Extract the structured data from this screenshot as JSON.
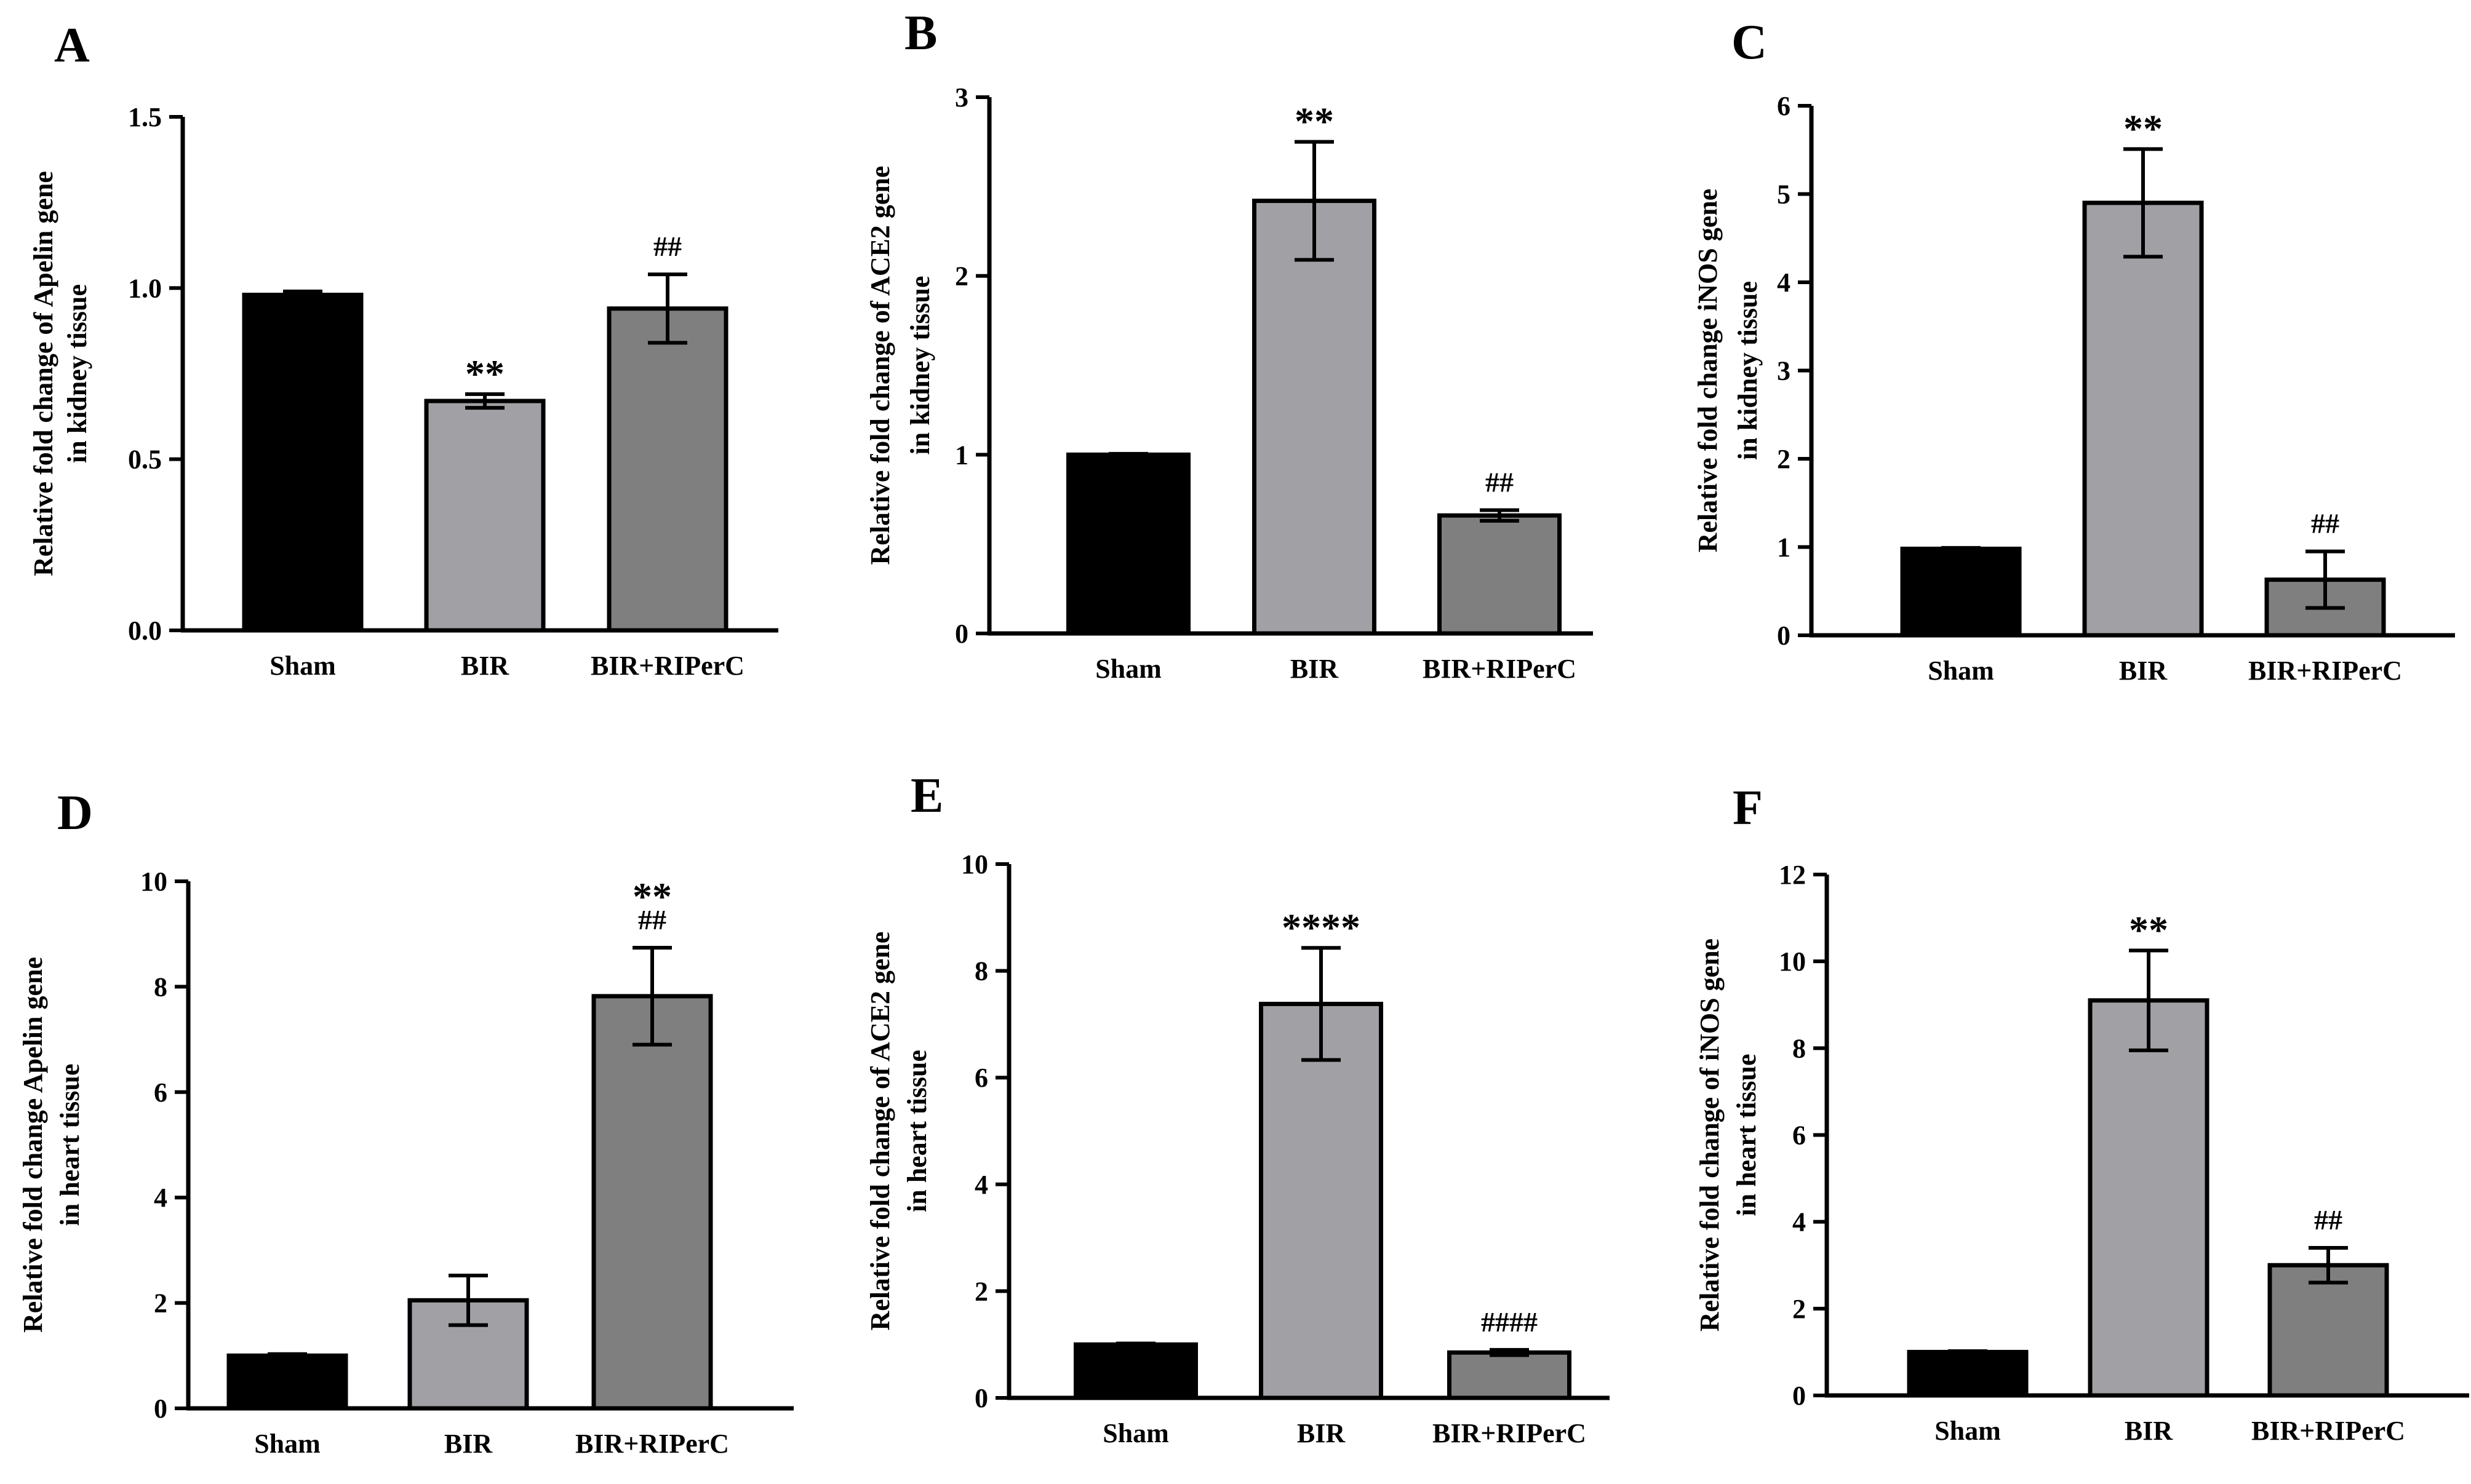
{
  "chart_data": [
    {
      "panel": "A",
      "type": "bar",
      "categories": [
        "Sham",
        "BIR",
        "BIR+RIPerC"
      ],
      "values": [
        0.98,
        0.67,
        0.94
      ],
      "errors": [
        0.01,
        0.02,
        0.1
      ],
      "colors": [
        "#000000",
        "#a1a1a5",
        "#7f7f7f"
      ],
      "significance": [
        "",
        "**",
        "##"
      ],
      "ylabel_lines": [
        "Relative fold change of Apelin gene",
        "in kidney tissue"
      ],
      "ylim": [
        0,
        1.5
      ],
      "yticks": [
        0,
        0.5,
        1,
        1.5
      ],
      "ytick_labels": [
        "0.0",
        "0.5",
        "1.0",
        "1.5"
      ]
    },
    {
      "panel": "B",
      "type": "bar",
      "categories": [
        "Sham",
        "BIR",
        "BIR+RIPerC"
      ],
      "values": [
        1.0,
        2.42,
        0.66
      ],
      "errors": [
        0.005,
        0.33,
        0.03
      ],
      "colors": [
        "#000000",
        "#a1a1a5",
        "#7f7f7f"
      ],
      "significance": [
        "",
        "**",
        "##"
      ],
      "ylabel_lines": [
        "Relative fold change of  ACE2 gene",
        "in kidney tissue"
      ],
      "ylim": [
        0,
        3
      ],
      "yticks": [
        0,
        1,
        2,
        3
      ],
      "ytick_labels": [
        "0",
        "1",
        "2",
        "3"
      ]
    },
    {
      "panel": "C",
      "type": "bar",
      "categories": [
        "Sham",
        "BIR",
        "BIR+RIPerC"
      ],
      "values": [
        0.98,
        4.9,
        0.63
      ],
      "errors": [
        0.01,
        0.61,
        0.32
      ],
      "colors": [
        "#000000",
        "#a1a1a5",
        "#7f7f7f"
      ],
      "significance": [
        "",
        "**",
        "##"
      ],
      "ylabel_lines": [
        "Relative fold change iNOS gene",
        "in kidney tissue"
      ],
      "ylim": [
        0,
        6
      ],
      "yticks": [
        0,
        1,
        2,
        3,
        4,
        5,
        6
      ],
      "ytick_labels": [
        "0",
        "1",
        "2",
        "3",
        "4",
        "5",
        "6"
      ]
    },
    {
      "panel": "D",
      "type": "bar",
      "categories": [
        "Sham",
        "BIR",
        "BIR+RIPerC"
      ],
      "values": [
        1.0,
        2.05,
        7.82
      ],
      "errors": [
        0.03,
        0.47,
        0.92
      ],
      "colors": [
        "#000000",
        "#a1a1a5",
        "#7f7f7f"
      ],
      "significance": [
        "",
        "",
        "**\n##"
      ],
      "ylabel_lines": [
        "Relative fold change Apelin gene",
        "in heart tissue"
      ],
      "ylim": [
        0,
        10
      ],
      "yticks": [
        0,
        2,
        4,
        6,
        8,
        10
      ],
      "ytick_labels": [
        "0",
        "2",
        "4",
        "6",
        "8",
        "10"
      ]
    },
    {
      "panel": "E",
      "type": "bar",
      "categories": [
        "Sham",
        "BIR",
        "BIR+RIPerC"
      ],
      "values": [
        1.0,
        7.38,
        0.85
      ],
      "errors": [
        0.02,
        1.05,
        0.05
      ],
      "colors": [
        "#000000",
        "#a1a1a5",
        "#7f7f7f"
      ],
      "significance": [
        "",
        "****",
        "####"
      ],
      "ylabel_lines": [
        "Relative fold change of ACE2 gene",
        "in heart tissue"
      ],
      "ylim": [
        0,
        10
      ],
      "yticks": [
        0,
        2,
        4,
        6,
        8,
        10
      ],
      "ytick_labels": [
        "0",
        "2",
        "4",
        "6",
        "8",
        "10"
      ]
    },
    {
      "panel": "F",
      "type": "bar",
      "categories": [
        "Sham",
        "BIR",
        "BIR+RIPerC"
      ],
      "values": [
        1.0,
        9.1,
        3.0
      ],
      "errors": [
        0.02,
        1.15,
        0.4
      ],
      "colors": [
        "#000000",
        "#a1a1a5",
        "#7f7f7f"
      ],
      "significance": [
        "",
        "**",
        "##"
      ],
      "ylabel_lines": [
        "Relative fold change of iNOS gene",
        "in heart tissue"
      ],
      "ylim": [
        0,
        12
      ],
      "yticks": [
        0,
        2,
        4,
        6,
        8,
        10,
        12
      ],
      "ytick_labels": [
        "0",
        "2",
        "4",
        "6",
        "8",
        "10",
        "12"
      ]
    }
  ]
}
